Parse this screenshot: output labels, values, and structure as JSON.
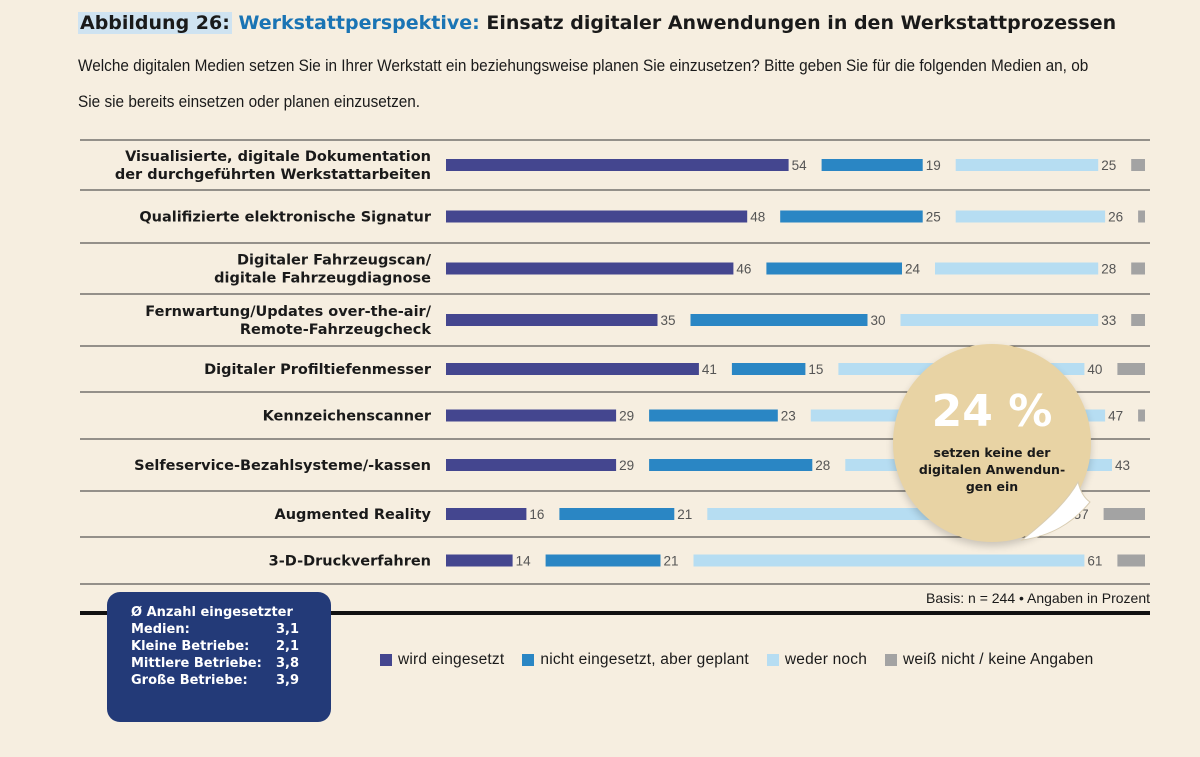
{
  "header": {
    "figure_label": "Abbildung 26:",
    "title_highlight": "Werkstattperspektive:",
    "title_rest": "Einsatz digitaler Anwendungen in den Werkstattprozessen",
    "question": "Welche digitalen Medien setzen Sie in Ihrer Werkstatt ein beziehungsweise planen Sie einzusetzen? Bitte geben Sie für die folgenden Medien an, ob Sie sie bereits einsetzen oder planen einzusetzen."
  },
  "chart_data": {
    "type": "bar",
    "stacked": true,
    "orientation": "horizontal",
    "categories": [
      [
        "Visualisierte, digitale Dokumentation",
        "der durchgeführten Werkstattarbeiten"
      ],
      [
        "Qualifizierte elektronische Signatur"
      ],
      [
        "Digitaler Fahrzeugscan/",
        "digitale Fahrzeugdiagnose"
      ],
      [
        "Fernwartung/Updates over-the-air/",
        "Remote-Fahrzeugcheck"
      ],
      [
        "Digitaler Profiltiefenmesser"
      ],
      [
        "Kennzeichenscanner"
      ],
      [
        "Selfeservice-Bezahlsysteme/-kassen"
      ],
      [
        "Augmented Reality"
      ],
      [
        "3-D-Druckverfahren"
      ]
    ],
    "series": [
      {
        "name": "wird eingesetzt",
        "color": "#44468f",
        "values": [
          54,
          48,
          46,
          35,
          41,
          29,
          29,
          16,
          14
        ]
      },
      {
        "name": "nicht eingesetzt, aber geplant",
        "color": "#2a86c4",
        "values": [
          19,
          25,
          24,
          30,
          15,
          23,
          28,
          21,
          21
        ]
      },
      {
        "name": "weder noch",
        "color": "#b6ddf2",
        "values": [
          25,
          26,
          28,
          33,
          40,
          47,
          43,
          57,
          61
        ]
      },
      {
        "name": "weiß nicht / keine Angaben",
        "color": "#a3a3a3",
        "values": [
          2,
          1,
          2,
          2,
          4,
          1,
          0,
          6,
          4
        ]
      }
    ],
    "shown_labels": [
      [
        54,
        19,
        25,
        null
      ],
      [
        48,
        25,
        26,
        null
      ],
      [
        46,
        24,
        28,
        null
      ],
      [
        35,
        30,
        33,
        null
      ],
      [
        41,
        15,
        40,
        null
      ],
      [
        29,
        23,
        47,
        null
      ],
      [
        29,
        28,
        43,
        null
      ],
      [
        16,
        21,
        57,
        null
      ],
      [
        14,
        21,
        61,
        null
      ]
    ],
    "xlim": [
      0,
      100
    ],
    "grid": false,
    "legend_position": "bottom",
    "note": "Basis: n = 244 • Angaben in Prozent"
  },
  "infobox": {
    "title": "Ø Anzahl eingesetzter",
    "rows": [
      {
        "label": "Medien:",
        "value": "3,1"
      },
      {
        "label": "Kleine Betriebe:",
        "value": "2,1"
      },
      {
        "label": "Mittlere Betriebe:",
        "value": "3,8"
      },
      {
        "label": "Große Betriebe:",
        "value": "3,9"
      }
    ]
  },
  "badge": {
    "value": "24 %",
    "text_lines": [
      "setzen keine der",
      "digitalen Anwendun-",
      "gen ein"
    ]
  }
}
